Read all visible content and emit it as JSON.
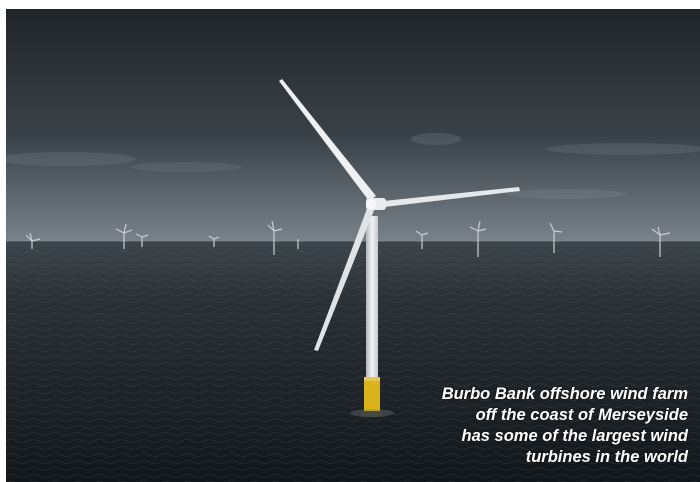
{
  "photo": {
    "subject": "wind-turbine",
    "colors": {
      "sky_top": "#23282d",
      "sky_mid": "#3c444b",
      "horizon": "#7a8288",
      "sea_near": "#151a1e",
      "sea_far": "#3a4248",
      "turbine": "#e8ecee",
      "foundation": "#d9b21c"
    }
  },
  "caption": {
    "lines": [
      "Burbo Bank offshore wind farm",
      "off the coast of Merseyside",
      "has some of the largest wind",
      "turbines in the world"
    ]
  }
}
